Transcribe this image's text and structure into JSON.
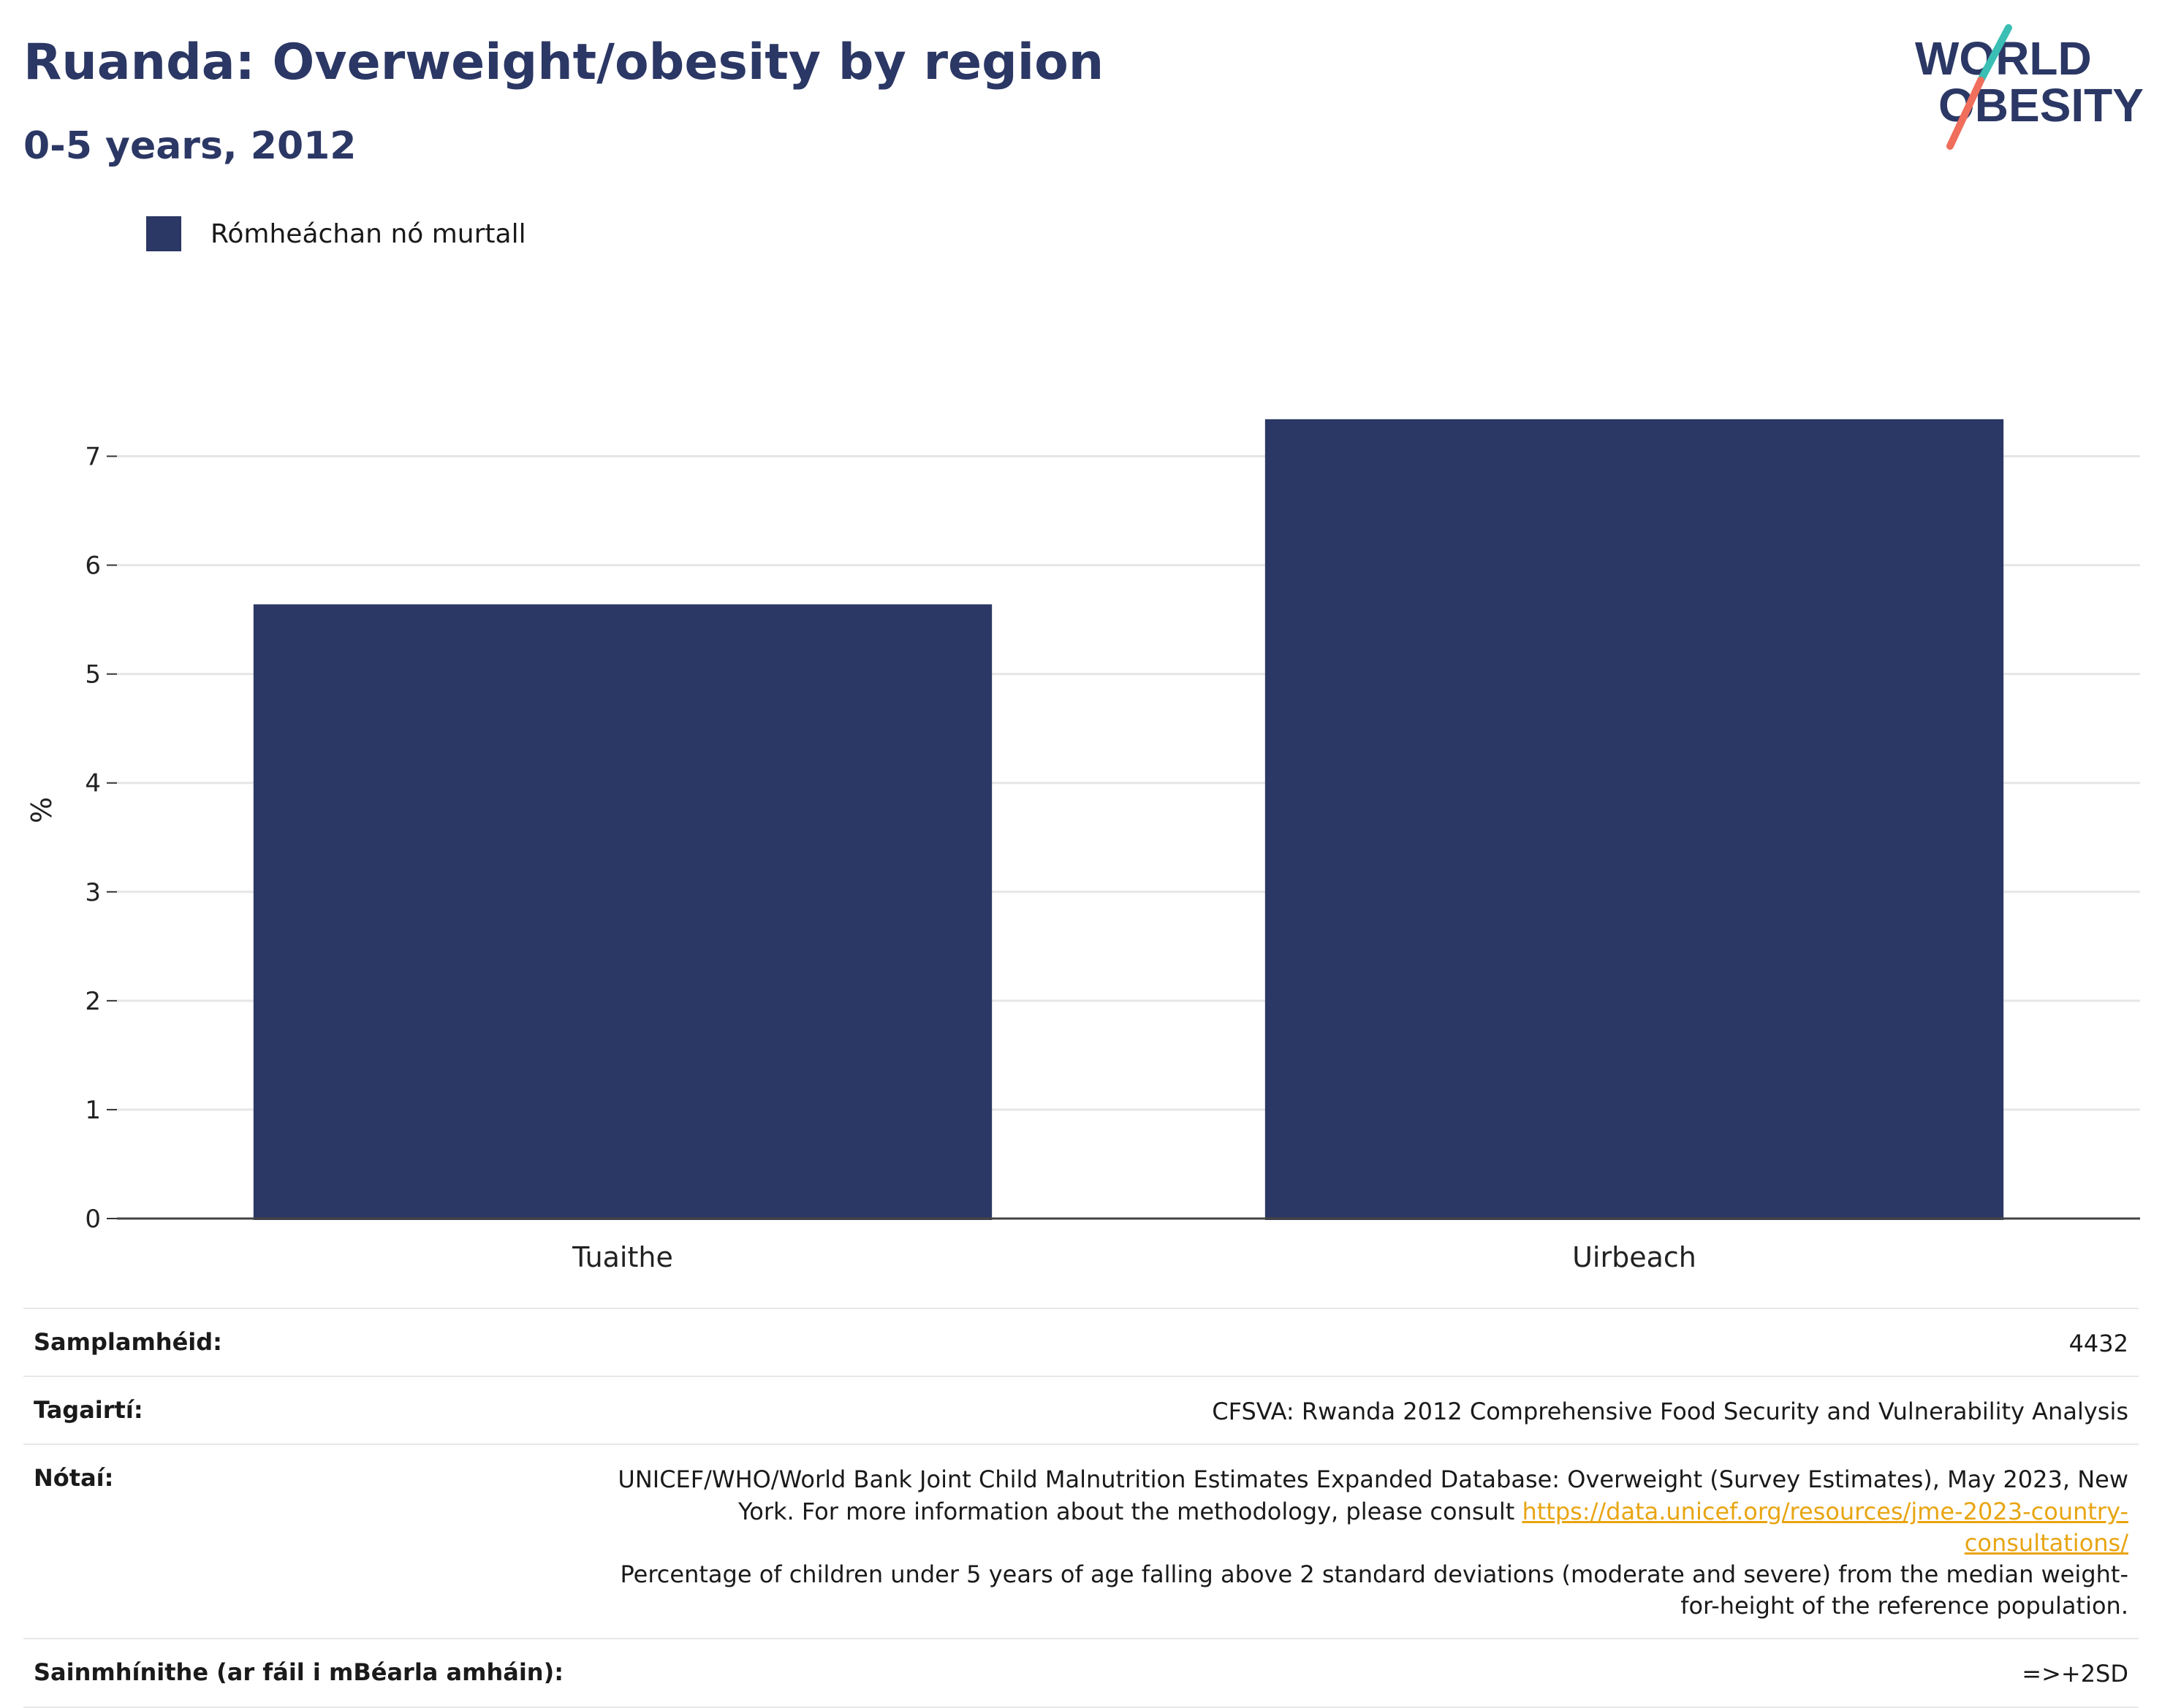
{
  "header": {
    "title": "Ruanda: Overweight/obesity by region",
    "subtitle": "0-5 years, 2012"
  },
  "logo": {
    "line1": "WORLD",
    "line2": "OBESITY",
    "accent_teal": "#3bbfb4",
    "accent_coral": "#ef6e5c",
    "text_color": "#2b3764"
  },
  "legend": {
    "label": "Rómheáchan nó murtall",
    "color": "#2b3764"
  },
  "chart_data": {
    "type": "bar",
    "categories": [
      "Tuaithe",
      "Uirbeach"
    ],
    "series": [
      {
        "name": "Rómheáchan nó murtall",
        "values": [
          5.64,
          7.34
        ],
        "color": "#2b3764"
      }
    ],
    "ylabel": "%",
    "xlabel": "",
    "ylim": [
      0,
      7.5
    ],
    "yticks": [
      0,
      1,
      2,
      3,
      4,
      5,
      6,
      7
    ],
    "grid": true,
    "legend_position": "top-left"
  },
  "info": {
    "sample_label": "Samplamhéid:",
    "sample_value": "4432",
    "references_label": "Tagairtí:",
    "references_value": "CFSVA: Rwanda 2012 Comprehensive Food Security and Vulnerability Analysis",
    "notes_label": "Nótaí:",
    "notes_text_1": "UNICEF/WHO/World Bank Joint Child Malnutrition Estimates Expanded Database: Overweight (Survey Estimates), May 2023, New York. For more information about the methodology, please consult ",
    "notes_link": "https://data.unicef.org/resources/jme-2023-country-consultations/",
    "notes_text_2": "Percentage of children under 5 years of age falling above 2 standard deviations (moderate and severe) from the median weight-for-height of the reference population.",
    "definitions_label": "Sainmhínithe (ar fáil i mBéarla amháin):",
    "definitions_value": "=>+2SD"
  }
}
